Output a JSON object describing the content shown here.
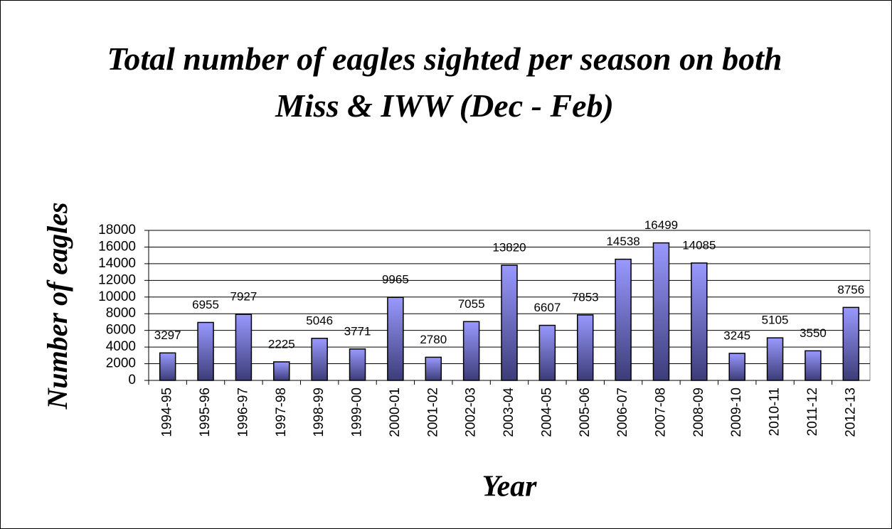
{
  "chart_data": {
    "type": "bar",
    "title": "Total number of eagles sighted per season on both Miss & IWW (Dec - Feb)",
    "x_label": "Year",
    "y_label": "Number of eagles",
    "categories": [
      "1994-95",
      "1995-96",
      "1996-97",
      "1997-98",
      "1998-99",
      "1999-00",
      "2000-01",
      "2001-02",
      "2002-03",
      "2003-04",
      "2004-05",
      "2005-06",
      "2006-07",
      "2007-08",
      "2008-09",
      "2009-10",
      "2010-11",
      "2011-12",
      "2012-13"
    ],
    "values": [
      3297,
      6955,
      7927,
      2225,
      5046,
      3771,
      9965,
      2780,
      7055,
      13820,
      6607,
      7853,
      14538,
      16499,
      14085,
      3245,
      5105,
      3550,
      8756
    ],
    "color": "#9999ff",
    "ylim": [
      0,
      18000
    ],
    "yticks": [
      0,
      2000,
      4000,
      6000,
      8000,
      10000,
      12000,
      14000,
      16000,
      18000
    ],
    "grid": true
  }
}
